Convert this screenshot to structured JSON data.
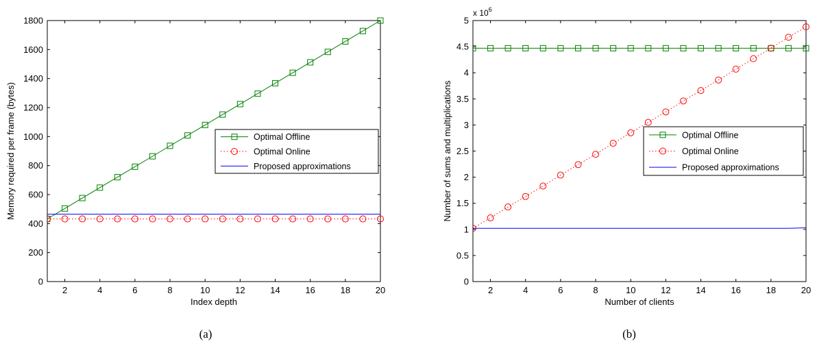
{
  "chart_data": [
    {
      "type": "line",
      "caption": "(a)",
      "xlabel": "Index depth",
      "ylabel": "Memory required per frame (bytes)",
      "xlim": [
        1,
        20
      ],
      "ylim": [
        0,
        1800
      ],
      "xticks": [
        2,
        4,
        6,
        8,
        10,
        12,
        14,
        16,
        18,
        20
      ],
      "yticks": [
        0,
        200,
        400,
        600,
        800,
        1000,
        1200,
        1400,
        1600,
        1800
      ],
      "grid": false,
      "legend_position": "center-right",
      "x": [
        1,
        2,
        3,
        4,
        5,
        6,
        7,
        8,
        9,
        10,
        11,
        12,
        13,
        14,
        15,
        16,
        17,
        18,
        19,
        20
      ],
      "series": [
        {
          "name": "Optimal Offline",
          "color": "#008000",
          "marker": "square",
          "line": "solid",
          "values": [
            432,
            504,
            576,
            648,
            720,
            792,
            864,
            936,
            1008,
            1080,
            1152,
            1224,
            1296,
            1368,
            1440,
            1512,
            1584,
            1656,
            1728,
            1800
          ]
        },
        {
          "name": "Optimal Online",
          "color": "#ff0000",
          "marker": "circle",
          "line": "dotted",
          "values": [
            432,
            432,
            432,
            432,
            432,
            432,
            432,
            432,
            432,
            432,
            432,
            432,
            432,
            432,
            432,
            432,
            432,
            432,
            432,
            432
          ]
        },
        {
          "name": "Proposed approximations",
          "color": "#0000ff",
          "marker": "none",
          "line": "solid",
          "values": [
            465,
            465,
            465,
            465,
            465,
            465,
            465,
            465,
            465,
            465,
            465,
            465,
            465,
            465,
            465,
            465,
            465,
            465,
            465,
            465
          ]
        }
      ]
    },
    {
      "type": "line",
      "caption": "(b)",
      "xlabel": "Number of clients",
      "ylabel": "Number of sums and multiplications",
      "exponent_label": "x 10",
      "exponent_power": "6",
      "xlim": [
        1,
        20
      ],
      "ylim": [
        0,
        5
      ],
      "xticks": [
        2,
        4,
        6,
        8,
        10,
        12,
        14,
        16,
        18,
        20
      ],
      "yticks": [
        0,
        0.5,
        1,
        1.5,
        2,
        2.5,
        3,
        3.5,
        4,
        4.5,
        5
      ],
      "grid": false,
      "legend_position": "center-right",
      "x": [
        1,
        2,
        3,
        4,
        5,
        6,
        7,
        8,
        9,
        10,
        11,
        12,
        13,
        14,
        15,
        16,
        17,
        18,
        19,
        20
      ],
      "series": [
        {
          "name": "Optimal Offline",
          "color": "#008000",
          "marker": "square",
          "line": "solid",
          "values": [
            4.47,
            4.47,
            4.47,
            4.47,
            4.47,
            4.47,
            4.47,
            4.47,
            4.47,
            4.47,
            4.47,
            4.47,
            4.47,
            4.47,
            4.47,
            4.47,
            4.47,
            4.47,
            4.47,
            4.47
          ]
        },
        {
          "name": "Optimal Online",
          "color": "#ff0000",
          "marker": "circle",
          "line": "dotted",
          "values": [
            1.02,
            1.22,
            1.43,
            1.63,
            1.83,
            2.04,
            2.24,
            2.44,
            2.65,
            2.85,
            3.05,
            3.25,
            3.46,
            3.66,
            3.86,
            4.07,
            4.27,
            4.47,
            4.68,
            4.88
          ]
        },
        {
          "name": "Proposed approximations",
          "color": "#0000ff",
          "marker": "none",
          "line": "solid",
          "values": [
            1.02,
            1.02,
            1.02,
            1.02,
            1.02,
            1.02,
            1.02,
            1.02,
            1.02,
            1.02,
            1.02,
            1.02,
            1.02,
            1.02,
            1.02,
            1.02,
            1.02,
            1.02,
            1.02,
            1.03
          ]
        }
      ]
    }
  ]
}
